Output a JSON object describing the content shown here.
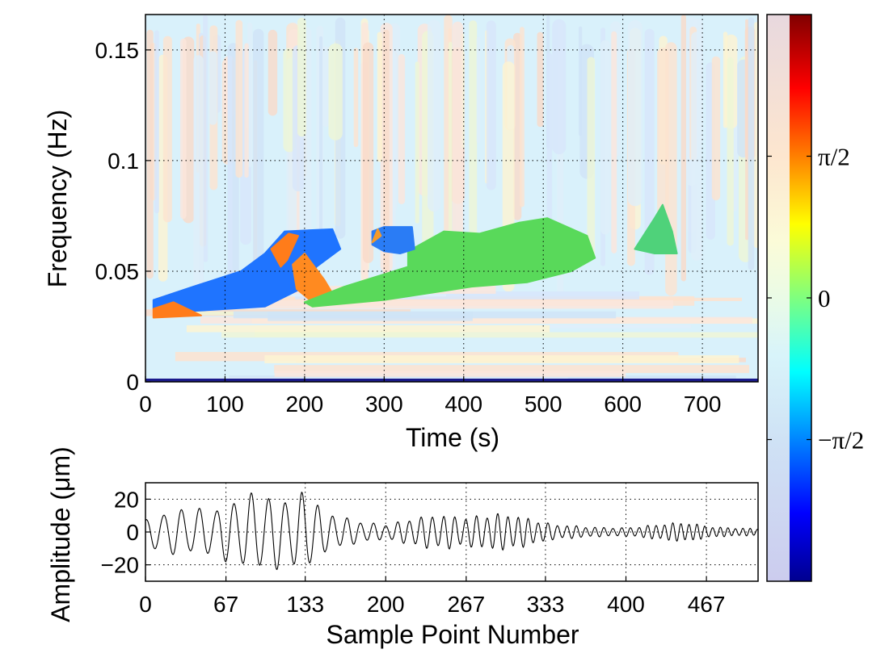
{
  "chart_data": [
    {
      "type": "heatmap",
      "subtype": "phase-scalogram",
      "xlabel": "Time (s)",
      "ylabel": "Frequency (Hz)",
      "xlim": [
        0,
        770
      ],
      "ylim": [
        0,
        0.166
      ],
      "x_ticks": [
        0,
        100,
        200,
        300,
        400,
        500,
        600,
        700
      ],
      "y_ticks": [
        0,
        0.05,
        0.1,
        0.15
      ],
      "x_tick_labels": [
        "0",
        "100",
        "200",
        "300",
        "400",
        "500",
        "600",
        "700"
      ],
      "y_tick_labels": [
        "0",
        "0.05",
        "0.1",
        "0.15"
      ],
      "grid": true,
      "grid_style": "dotted",
      "background": "pale pastel phase noise (light blue, light pink, light yellow streaks)",
      "significant_regions": [
        {
          "phase": "-pi/2",
          "color": "#1f74ff",
          "polygon": [
            [
              10,
              0.037
            ],
            [
              60,
              0.043
            ],
            [
              120,
              0.05
            ],
            [
              150,
              0.058
            ],
            [
              175,
              0.068
            ],
            [
              235,
              0.069
            ],
            [
              245,
              0.06
            ],
            [
              215,
              0.052
            ],
            [
              195,
              0.042
            ],
            [
              150,
              0.034
            ],
            [
              60,
              0.032
            ],
            [
              10,
              0.033
            ]
          ]
        },
        {
          "phase": "+pi/2",
          "color": "#ff7c1a",
          "polygon": [
            [
              10,
              0.033
            ],
            [
              35,
              0.036
            ],
            [
              70,
              0.03
            ],
            [
              10,
              0.029
            ]
          ]
        },
        {
          "phase": "+pi/2",
          "color": "#ff7c1a",
          "polygon": [
            [
              158,
              0.06
            ],
            [
              180,
              0.067
            ],
            [
              192,
              0.066
            ],
            [
              178,
              0.055
            ],
            [
              170,
              0.052
            ]
          ]
        },
        {
          "phase": "+pi/2",
          "color": "#ff8a20",
          "polygon": [
            [
              185,
              0.053
            ],
            [
              200,
              0.058
            ],
            [
              225,
              0.046
            ],
            [
              235,
              0.04
            ],
            [
              210,
              0.036
            ],
            [
              190,
              0.042
            ]
          ]
        },
        {
          "phase": "0",
          "color": "#59d95a",
          "polygon": [
            [
              200,
              0.036
            ],
            [
              250,
              0.043
            ],
            [
              330,
              0.052
            ],
            [
              330,
              0.059
            ],
            [
              375,
              0.068
            ],
            [
              420,
              0.067
            ],
            [
              470,
              0.072
            ],
            [
              505,
              0.074
            ],
            [
              555,
              0.066
            ],
            [
              565,
              0.056
            ],
            [
              535,
              0.05
            ],
            [
              480,
              0.045
            ],
            [
              410,
              0.043
            ],
            [
              300,
              0.037
            ],
            [
              210,
              0.034
            ]
          ]
        },
        {
          "phase": "-pi/2",
          "color": "#2a7cf5",
          "polygon": [
            [
              285,
              0.068
            ],
            [
              300,
              0.07
            ],
            [
              335,
              0.07
            ],
            [
              338,
              0.06
            ],
            [
              320,
              0.058
            ],
            [
              300,
              0.059
            ],
            [
              285,
              0.062
            ]
          ]
        },
        {
          "phase": "+pi/2",
          "color": "#f49a2a",
          "polygon": [
            [
              285,
              0.063
            ],
            [
              292,
              0.069
            ],
            [
              296,
              0.066
            ]
          ]
        },
        {
          "phase": "0",
          "color": "#4fd27a",
          "polygon": [
            [
              615,
              0.06
            ],
            [
              640,
              0.074
            ],
            [
              650,
              0.08
            ],
            [
              662,
              0.068
            ],
            [
              668,
              0.058
            ],
            [
              640,
              0.058
            ]
          ]
        }
      ]
    },
    {
      "type": "line",
      "xlabel": "Sample Point Number",
      "ylabel": "Amplitude (μm)",
      "xlim": [
        0,
        510
      ],
      "ylim": [
        -30,
        30
      ],
      "x_ticks": [
        0,
        67,
        133,
        200,
        267,
        333,
        400,
        467
      ],
      "x_tick_labels": [
        "0",
        "67",
        "133",
        "200",
        "267",
        "333",
        "400",
        "467"
      ],
      "y_ticks": [
        -20,
        0,
        20
      ],
      "y_tick_labels": [
        "−20",
        "0",
        "20"
      ],
      "grid": true,
      "grid_style": "dotted",
      "series": [
        {
          "color": "#000000",
          "envelope_points": [
            [
              0,
              9
            ],
            [
              20,
              14
            ],
            [
              40,
              17
            ],
            [
              60,
              20
            ],
            [
              80,
              23
            ],
            [
              100,
              25
            ],
            [
              115,
              27
            ],
            [
              130,
              30
            ],
            [
              140,
              26
            ],
            [
              150,
              12
            ],
            [
              175,
              8
            ],
            [
              200,
              6
            ],
            [
              250,
              12
            ],
            [
              290,
              12
            ],
            [
              325,
              9
            ],
            [
              340,
              6
            ],
            [
              370,
              3
            ],
            [
              395,
              3
            ],
            [
              420,
              5
            ],
            [
              450,
              6
            ],
            [
              475,
              4
            ],
            [
              510,
              2
            ]
          ],
          "period_points": [
            [
              0,
              15
            ],
            [
              120,
              14
            ],
            [
              140,
              13
            ],
            [
              200,
              10
            ],
            [
              340,
              8
            ],
            [
              510,
              6
            ]
          ],
          "notes": "quasi-periodic oscillation; traced waveform"
        }
      ]
    },
    {
      "type": "colorbar",
      "tick_labels": [
        "π/2",
        "0",
        "−π/2"
      ],
      "tick_values": [
        1.5708,
        0,
        -1.5708
      ],
      "range": [
        -3.14159,
        3.14159
      ],
      "colormap": "jet (pale overlay on left half)"
    }
  ]
}
